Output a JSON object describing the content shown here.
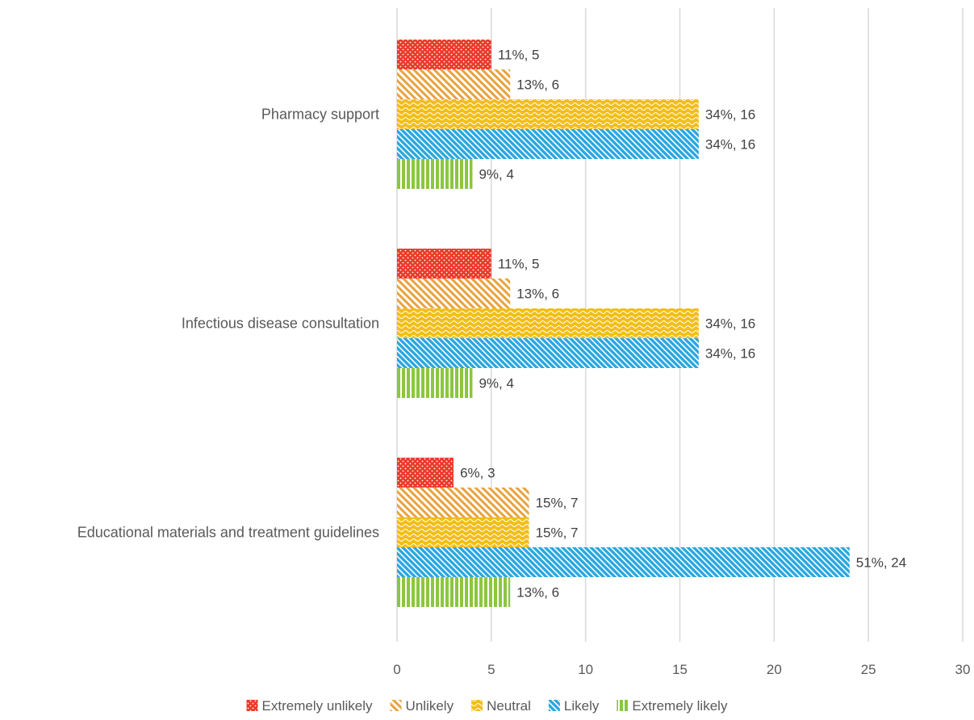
{
  "chart_data": {
    "type": "bar",
    "orientation": "horizontal",
    "categories": [
      "Pharmacy support",
      "Infectious disease consultation",
      "Educational materials and treatment guidelines"
    ],
    "series": [
      {
        "name": "Extremely unlikely",
        "color": "#EA3A2A",
        "pattern": "dots",
        "values": [
          5,
          5,
          3
        ],
        "labels": [
          "11%, 5",
          "11%, 5",
          "6%, 3"
        ]
      },
      {
        "name": "Unlikely",
        "color": "#E8A33E",
        "pattern": "zigzag",
        "values": [
          6,
          6,
          7
        ],
        "labels": [
          "13%, 6",
          "13%, 6",
          "15%, 7"
        ]
      },
      {
        "name": "Neutral",
        "color": "#F2BE18",
        "pattern": "wave",
        "values": [
          16,
          16,
          7
        ],
        "labels": [
          "34%, 16",
          "34%, 16",
          "15%, 7"
        ]
      },
      {
        "name": "Likely",
        "color": "#29A7DF",
        "pattern": "diagonal",
        "values": [
          16,
          16,
          24
        ],
        "labels": [
          "34%, 16",
          "34%, 16",
          "51%, 24"
        ]
      },
      {
        "name": "Extremely likely",
        "color": "#8CC63F",
        "pattern": "vertical",
        "values": [
          4,
          4,
          6
        ],
        "labels": [
          "9%, 4",
          "9%, 4",
          "13%, 6"
        ]
      }
    ],
    "xlim": [
      0,
      30
    ],
    "xticks": [
      "0",
      "5",
      "10",
      "15",
      "20",
      "25",
      "30"
    ],
    "grid": "vertical",
    "legend": "bottom",
    "title": "",
    "xlabel": "",
    "ylabel": ""
  }
}
